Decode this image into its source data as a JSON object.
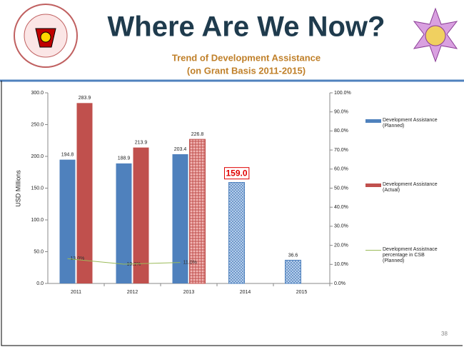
{
  "slide": {
    "title": "Where Are We Now?",
    "subtitle_lines": [
      "Trend of Development Assistance",
      "(on Grant Basis 2011-2015)"
    ],
    "page_number": "38"
  },
  "chart_data": {
    "type": "bar",
    "y_label": "USD Millions",
    "categories": [
      "2011",
      "2012",
      "2013",
      "2014",
      "2015"
    ],
    "series": [
      {
        "name": "Development Assistance (Planned)",
        "color": "#4f81bd",
        "values": [
          194.8,
          188.9,
          203.4,
          159.0,
          36.6
        ],
        "value_labels": [
          "194.8",
          "188.9",
          "203.4",
          "159.0",
          "36.6"
        ],
        "hatched": [
          false,
          false,
          false,
          true,
          true
        ],
        "highlighted": [
          false,
          false,
          false,
          true,
          false
        ]
      },
      {
        "name": "Development Assistance (Actual)",
        "color": "#c0504d",
        "values": [
          283.9,
          213.9,
          226.8,
          null,
          null
        ],
        "value_labels": [
          "283.9",
          "213.9",
          "226.8",
          null,
          null
        ],
        "hatched": [
          false,
          false,
          true,
          false,
          false
        ]
      },
      {
        "name": "Development Assistnace percentage in CSB (Planned)",
        "color": "#9bbb59",
        "type": "line",
        "axis": "y2",
        "values": [
          13.0,
          10.1,
          11.0,
          null,
          null
        ],
        "value_labels": [
          "13.0%",
          "10.1%",
          "11.0%",
          null,
          null
        ]
      }
    ],
    "ylim": [
      0,
      300
    ],
    "yticks": [
      {
        "value": 0,
        "label": "0.0"
      },
      {
        "value": 50,
        "label": "50.0"
      },
      {
        "value": 100,
        "label": "100.0"
      },
      {
        "value": 150,
        "label": "150.0"
      },
      {
        "value": 200,
        "label": "200.0"
      },
      {
        "value": 250,
        "label": "250.0"
      },
      {
        "value": 300,
        "label": "300.0"
      }
    ],
    "y2lim": [
      0,
      100
    ],
    "y2ticks": [
      {
        "value": 0,
        "label": "0.0%"
      },
      {
        "value": 10,
        "label": "10.0%"
      },
      {
        "value": 20,
        "label": "20.0%"
      },
      {
        "value": 30,
        "label": "30.0%"
      },
      {
        "value": 40,
        "label": "40.0%"
      },
      {
        "value": 50,
        "label": "50.0%"
      },
      {
        "value": 60,
        "label": "60.0%"
      },
      {
        "value": 70,
        "label": "70.0%"
      },
      {
        "value": 80,
        "label": "80.0%"
      },
      {
        "value": 90,
        "label": "90.0%"
      },
      {
        "value": 100,
        "label": "100.0%"
      }
    ],
    "legend": "right"
  }
}
